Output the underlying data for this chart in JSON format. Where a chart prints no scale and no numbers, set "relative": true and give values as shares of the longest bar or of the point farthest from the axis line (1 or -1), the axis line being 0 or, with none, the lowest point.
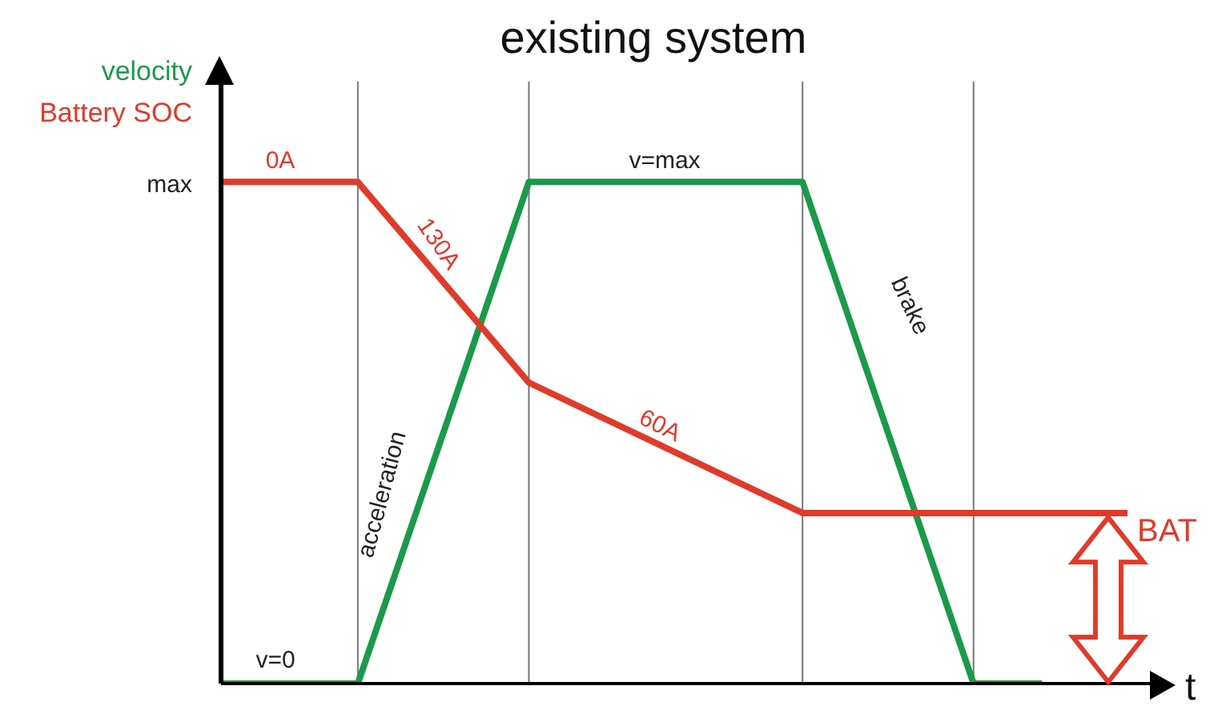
{
  "chart_data": {
    "type": "line",
    "title": "existing system",
    "xlabel": "t",
    "relative": true,
    "legend": "top left",
    "marker": "none",
    "line_style": "solid",
    "categories": [
      null,
      null,
      null,
      null,
      null,
      null,
      null,
      null,
      null,
      null,
      null,
      null,
      null,
      null,
      null,
      null,
      null,
      null,
      null,
      null,
      null,
      null,
      null,
      null,
      null,
      null,
      null,
      null,
      null,
      null,
      null,
      null,
      null,
      null,
      null,
      null,
      null,
      null,
      null,
      null,
      null,
      null,
      null,
      null,
      null,
      null,
      null,
      null,
      null,
      null,
      null,
      null,
      null,
      null,
      null
    ],
    "series": [
      {
        "name": "velocity",
        "color": "#1a9a4a",
        "values": [
          0,
          null,
          null,
          null,
          null,
          null,
          null,
          null,
          0,
          null,
          null,
          null,
          null,
          null,
          null,
          null,
          null,
          null,
          1,
          null,
          null,
          null,
          null,
          null,
          null,
          null,
          null,
          null,
          null,
          null,
          null,
          null,
          null,
          null,
          1,
          null,
          null,
          null,
          null,
          null,
          null,
          null,
          null,
          null,
          0,
          null,
          null,
          null,
          0,
          null,
          null,
          null,
          null,
          null,
          null
        ]
      },
      {
        "name": "Battery SOC",
        "color": "#e03a2a",
        "values": [
          1,
          null,
          null,
          null,
          null,
          null,
          null,
          null,
          1,
          null,
          null,
          null,
          null,
          null,
          null,
          null,
          null,
          null,
          0.6,
          null,
          null,
          null,
          null,
          null,
          null,
          null,
          null,
          null,
          null,
          null,
          null,
          null,
          null,
          null,
          0.34,
          null,
          null,
          null,
          null,
          null,
          null,
          null,
          null,
          null,
          null,
          null,
          null,
          null,
          null,
          null,
          null,
          null,
          null,
          0.34,
          null
        ]
      }
    ],
    "grid": "x",
    "annotations": [
      "max",
      "0A",
      "130A",
      "60A",
      "v=max",
      "v=0",
      "acceleration",
      "brake",
      "BAT"
    ]
  }
}
